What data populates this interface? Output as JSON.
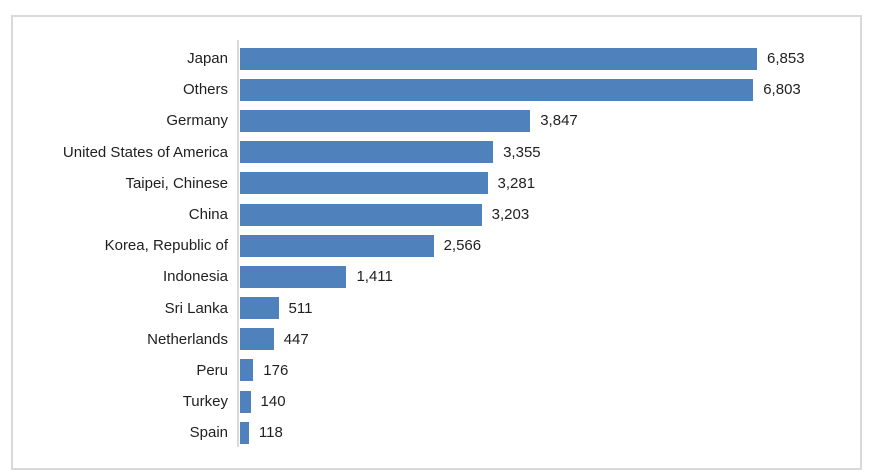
{
  "chart_data": {
    "type": "bar",
    "orientation": "horizontal",
    "title": "",
    "xlabel": "",
    "ylabel": "",
    "grid": false,
    "legend": false,
    "value_labels_shown": true,
    "categories": [
      "Japan",
      "Others",
      "Germany",
      "United States of America",
      "Taipei, Chinese",
      "China",
      "Korea, Republic of",
      "Indonesia",
      "Sri Lanka",
      "Netherlands",
      "Peru",
      "Turkey",
      "Spain"
    ],
    "values": [
      6853,
      6803,
      3847,
      3355,
      3281,
      3203,
      2566,
      1411,
      511,
      447,
      176,
      140,
      118
    ],
    "value_labels": [
      "6,853",
      "6,803",
      "3,847",
      "3,355",
      "3,281",
      "3,203",
      "2,566",
      "1,411",
      "511",
      "447",
      "176",
      "140",
      "118"
    ],
    "colors": {
      "bar": "#4F81BD",
      "axis": "#D9D9D9",
      "frame_border": "#D9D9D9",
      "text": "#1F1F1F",
      "background": "#FFFFFF"
    }
  }
}
